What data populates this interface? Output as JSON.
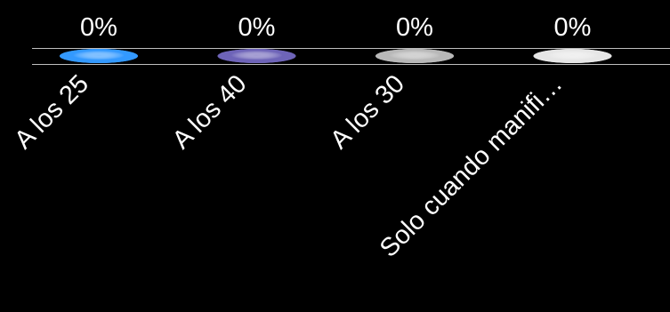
{
  "chart_data": {
    "type": "bar",
    "title": "",
    "xlabel": "",
    "ylabel": "",
    "categories": [
      "A los 25",
      "A los 40",
      "A los 30",
      "Solo cuando manifi…"
    ],
    "values": [
      0,
      0,
      0,
      0
    ],
    "value_labels": [
      "0%",
      "0%",
      "0%",
      "0%"
    ],
    "colors": [
      "#3399ff",
      "#6e64b8",
      "#b8b8b8",
      "#e6e6e6"
    ],
    "grid": false,
    "legend": "none"
  }
}
